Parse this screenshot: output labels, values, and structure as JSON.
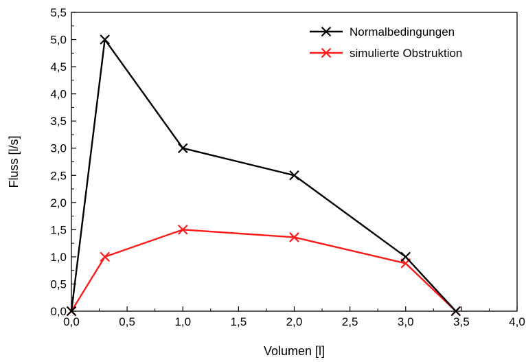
{
  "chart_data": {
    "type": "line",
    "title": "",
    "xlabel": "Volumen [l]",
    "ylabel": "Fluss [l/s]",
    "xlim": [
      0.0,
      4.0
    ],
    "ylim": [
      0.0,
      5.5
    ],
    "x_ticks": [
      "0,0",
      "0,5",
      "1,0",
      "1,5",
      "2,0",
      "2,5",
      "3,0",
      "3,5",
      "4,0"
    ],
    "y_ticks": [
      "0,0",
      "0,5",
      "1,0",
      "1,5",
      "2,0",
      "2,5",
      "3,0",
      "3,5",
      "4,0",
      "4,5",
      "5,0",
      "5,5"
    ],
    "grid": false,
    "legend_position": "top-right",
    "series": [
      {
        "name": "Normalbedingungen",
        "color": "#000000",
        "marker": "x",
        "x": [
          0.0,
          0.3,
          1.0,
          2.0,
          3.0,
          3.45
        ],
        "y": [
          0.0,
          5.0,
          3.0,
          2.5,
          1.0,
          0.0
        ]
      },
      {
        "name": "simulierte Obstruktion",
        "color": "#ff1a1a",
        "marker": "x",
        "x": [
          0.0,
          0.3,
          1.0,
          2.0,
          3.0,
          3.45
        ],
        "y": [
          0.0,
          1.0,
          1.5,
          1.36,
          0.88,
          0.0
        ]
      }
    ]
  }
}
